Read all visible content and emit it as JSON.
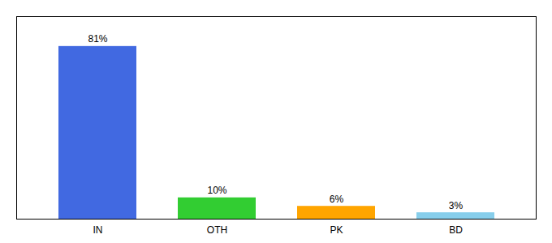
{
  "chart_data": {
    "type": "bar",
    "categories": [
      "IN",
      "OTH",
      "PK",
      "BD"
    ],
    "values": [
      81,
      10,
      6,
      3
    ],
    "value_labels": [
      "81%",
      "10%",
      "6%",
      "3%"
    ],
    "colors": [
      "#4169E1",
      "#32CD32",
      "#FFA500",
      "#87CEEB"
    ],
    "ylim": [
      0,
      95
    ],
    "yticks": [],
    "grid": false,
    "data_labels": true,
    "tick_labels": "x"
  }
}
